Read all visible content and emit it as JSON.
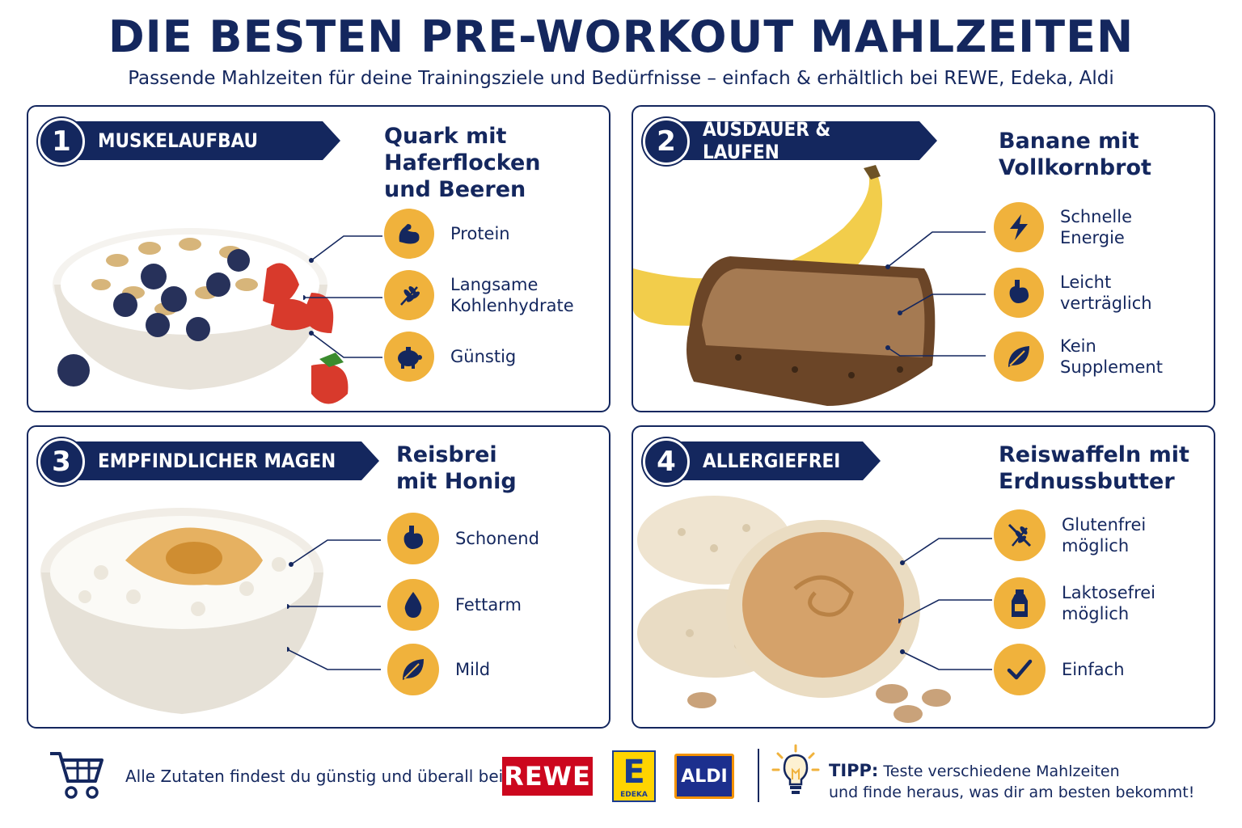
{
  "header": {
    "title": "DIE BESTEN PRE-WORKOUT MAHLZEITEN",
    "subtitle": "Passende Mahlzeiten für deine Trainingsziele und Bedürfnisse – einfach & erhältlich bei REWE, Edeka, Aldi"
  },
  "colors": {
    "navy": "#14275e",
    "accent": "#f0b23c"
  },
  "cards": [
    {
      "number": "1",
      "category": "MUSKELAUFBAU",
      "meal": "Quark mit\nHaferflocken\nund Beeren",
      "features": [
        {
          "label": "Protein",
          "icon": "flexed-arm-icon"
        },
        {
          "label": "Langsame\nKohlenhydrate",
          "icon": "grain-icon"
        },
        {
          "label": "Günstig",
          "icon": "piggy-bank-icon"
        }
      ]
    },
    {
      "number": "2",
      "category": "AUSDAUER & LAUFEN",
      "meal": "Banane mit\nVollkornbrot",
      "features": [
        {
          "label": "Schnelle\nEnergie",
          "icon": "lightning-icon"
        },
        {
          "label": "Leicht\nverträglich",
          "icon": "stomach-icon"
        },
        {
          "label": "Kein\nSupplement",
          "icon": "leaf-icon"
        }
      ]
    },
    {
      "number": "3",
      "category": "EMPFINDLICHER MAGEN",
      "meal": "Reisbrei\nmit Honig",
      "features": [
        {
          "label": "Schonend",
          "icon": "stomach-icon"
        },
        {
          "label": "Fettarm",
          "icon": "drop-icon"
        },
        {
          "label": "Mild",
          "icon": "leaf-icon"
        }
      ]
    },
    {
      "number": "4",
      "category": "ALLERGIEFREI",
      "meal": "Reiswaffeln mit\nErdnussbutter",
      "features": [
        {
          "label": "Glutenfrei\nmöglich",
          "icon": "no-gluten-icon"
        },
        {
          "label": "Laktosefrei\nmöglich",
          "icon": "milk-bottle-icon"
        },
        {
          "label": "Einfach",
          "icon": "checkmark-icon"
        }
      ]
    }
  ],
  "footer": {
    "text": "Alle Zutaten findest du günstig und überall bei",
    "stores": {
      "rewe": "REWE",
      "edeka_letter": "E",
      "edeka": "EDEKA",
      "aldi": "ALDI"
    },
    "tip_label": "TIPP:",
    "tip_line1": "Teste verschiedene Mahlzeiten",
    "tip_line2": "und finde heraus, was dir am besten bekommt!"
  }
}
